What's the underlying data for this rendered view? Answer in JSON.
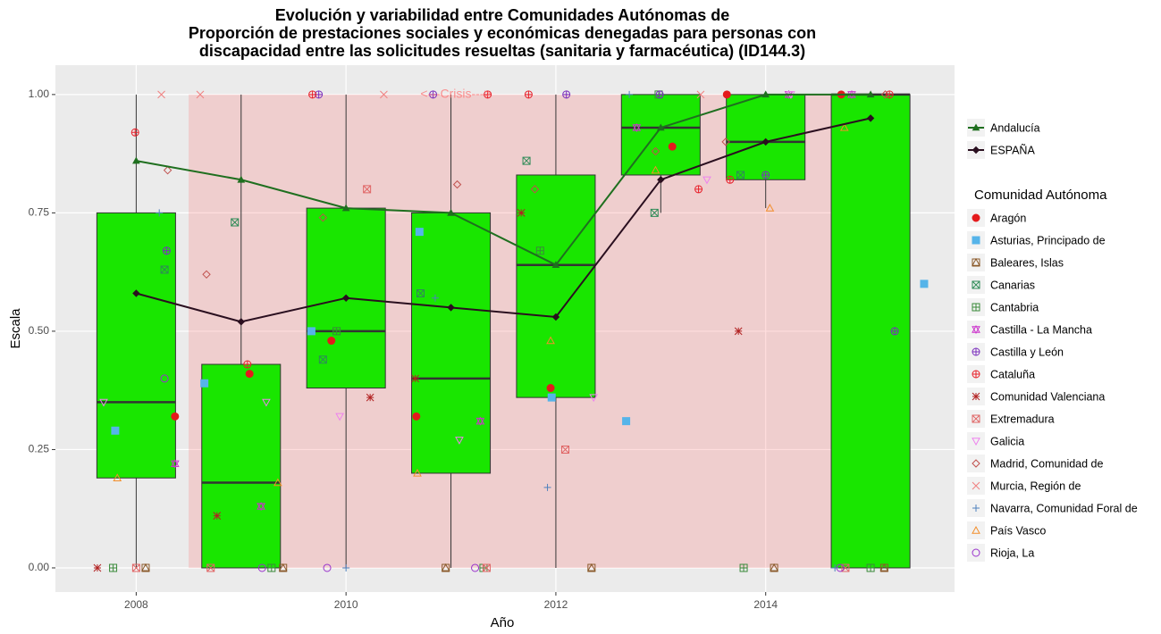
{
  "chart_data": {
    "type": "box",
    "title": [
      "Evolución y variabilidad entre Comunidades Autónomas de",
      "Proporción de prestaciones sociales y económicas denegadas para personas con",
      "discapacidad entre las solicitudes resueltas (sanitaria y farmacéutica) (ID144.3)"
    ],
    "x_label": "Año",
    "y_label": "Escala",
    "xlim": [
      2007.23,
      2015.8
    ],
    "ylim": [
      -0.051,
      1.062
    ],
    "xticks": [
      2008,
      2010,
      2012,
      2014
    ],
    "yticks": [
      {
        "value": 0,
        "label": "0.00"
      },
      {
        "value": 0.25,
        "label": "0.25"
      },
      {
        "value": 0.5,
        "label": "0.50"
      },
      {
        "value": 0.75,
        "label": "0.75"
      },
      {
        "value": 1,
        "label": "1.00"
      }
    ],
    "grid": true,
    "crisis": {
      "label": "<---Crisis--->",
      "xlim": [
        2008.5,
        2015
      ],
      "ylim": [
        0,
        1
      ],
      "color": "#ff6b6b"
    },
    "box_color": "#19e600",
    "boxes": [
      {
        "x": 2008,
        "low": 0,
        "q1": 0.19,
        "median": 0.35,
        "q3": 0.75,
        "high": 1
      },
      {
        "x": 2009,
        "low": 0,
        "q1": 0,
        "median": 0.18,
        "q3": 0.43,
        "high": 1
      },
      {
        "x": 2010,
        "low": 0,
        "q1": 0.38,
        "median": 0.5,
        "q3": 0.76,
        "high": 1
      },
      {
        "x": 2011,
        "low": 0,
        "q1": 0.2,
        "median": 0.4,
        "q3": 0.75,
        "high": 1
      },
      {
        "x": 2012,
        "low": 0,
        "q1": 0.36,
        "median": 0.64,
        "q3": 0.83,
        "high": 1
      },
      {
        "x": 2013,
        "low": 0.75,
        "q1": 0.83,
        "median": 0.93,
        "q3": 1,
        "high": 1
      },
      {
        "x": 2014,
        "low": 0.76,
        "q1": 0.82,
        "median": 0.9,
        "q3": 1,
        "high": 1
      },
      {
        "x": 2015,
        "low": 0,
        "q1": 0,
        "median": 1,
        "q3": 1,
        "high": 1
      }
    ],
    "lines": [
      {
        "name": "Andalucía",
        "color": "#1f6f1f",
        "shape": "triangle",
        "x": [
          2008,
          2009,
          2010,
          2011,
          2012,
          2013,
          2014,
          2015
        ],
        "values": [
          0.86,
          0.82,
          0.76,
          0.75,
          0.64,
          0.93,
          1,
          1
        ]
      },
      {
        "name": "ESPAÑA",
        "color": "#2a0f1f",
        "shape": "diamond",
        "x": [
          2008,
          2009,
          2010,
          2011,
          2012,
          2013,
          2014,
          2015
        ],
        "values": [
          0.58,
          0.52,
          0.57,
          0.55,
          0.53,
          0.82,
          0.9,
          0.95
        ]
      }
    ],
    "legend_title": "Comunidad Autónoma",
    "series": [
      {
        "name": "Aragón",
        "color": "#e41a1c",
        "shape": "dot",
        "x": [
          2008.37,
          2009.08,
          2009.86,
          2010.67,
          2011.95,
          2013.11,
          2013.63,
          2014.72
        ],
        "values": [
          0.32,
          0.41,
          0.48,
          0.32,
          0.38,
          0.89,
          1,
          1
        ]
      },
      {
        "name": "Asturias, Principado de",
        "color": "#56b4e9",
        "shape": "square",
        "x": [
          2007.8,
          2008.65,
          2009.67,
          2010.7,
          2011.96,
          2012.67,
          2015.51
        ],
        "values": [
          0.29,
          0.39,
          0.5,
          0.71,
          0.36,
          0.31,
          0.6
        ]
      },
      {
        "name": "Baleares, Islas",
        "color": "#8b5a2b",
        "shape": "square-tri",
        "x": [
          2008.09,
          2009.4,
          2010.95,
          2012.34,
          2014.08,
          2015.13
        ],
        "values": [
          0,
          0,
          0,
          0,
          0,
          0
        ]
      },
      {
        "name": "Canarias",
        "color": "#2e8b57",
        "shape": "square-x",
        "x": [
          2008.27,
          2008.94,
          2009.78,
          2010.71,
          2011.72,
          2012.94,
          2013.76
        ],
        "values": [
          0.63,
          0.73,
          0.44,
          0.58,
          0.86,
          0.75,
          0.83
        ]
      },
      {
        "name": "Cantabria",
        "color": "#3a8a3a",
        "shape": "square-plus",
        "x": [
          2007.78,
          2009.29,
          2009.91,
          2011.31,
          2011.85,
          2012.98,
          2013.79,
          2015
        ],
        "values": [
          0,
          0,
          0.5,
          0,
          0.67,
          1,
          0,
          0
        ]
      },
      {
        "name": "Castilla - La Mancha",
        "color": "#cc33cc",
        "shape": "star-tri",
        "x": [
          2008.37,
          2009.19,
          2011.28,
          2012.77,
          2014.22,
          2014.82
        ],
        "values": [
          0.22,
          0.13,
          0.31,
          0.93,
          1,
          1
        ]
      },
      {
        "name": "Castilla y León",
        "color": "#7b2fbe",
        "shape": "circle-plus",
        "x": [
          2008.29,
          2009.74,
          2010.83,
          2012.1,
          2012.99,
          2014,
          2015.23
        ],
        "values": [
          0.67,
          1,
          1,
          1,
          1,
          0.83,
          0.5
        ]
      },
      {
        "name": "Cataluña",
        "color": "#e8202a",
        "shape": "circle-plus",
        "x": [
          2007.99,
          2009.06,
          2009.68,
          2011.35,
          2011.74,
          2013.36,
          2013.66,
          2015.18
        ],
        "values": [
          0.92,
          0.43,
          1,
          1,
          1,
          0.8,
          0.82,
          1
        ]
      },
      {
        "name": "Comunidad Valenciana",
        "color": "#b22222",
        "shape": "asterisk",
        "x": [
          2007.63,
          2008.77,
          2010.23,
          2010.66,
          2011.67,
          2013.74
        ],
        "values": [
          0,
          0.11,
          0.36,
          0.4,
          0.75,
          0.5
        ]
      },
      {
        "name": "Extremadura",
        "color": "#e06666",
        "shape": "square-x",
        "x": [
          2008,
          2008.71,
          2010.2,
          2011.34,
          2012.09,
          2014.76
        ],
        "values": [
          0,
          0,
          0.8,
          0,
          0.25,
          0
        ]
      },
      {
        "name": "Galicia",
        "color": "#ee82ee",
        "shape": "tri-down",
        "x": [
          2007.69,
          2009.24,
          2009.94,
          2011.08,
          2012.36,
          2013.44,
          2014.24
        ],
        "values": [
          0.35,
          0.35,
          0.32,
          0.27,
          0.36,
          0.82,
          1
        ]
      },
      {
        "name": "Madrid, Comunidad de",
        "color": "#c0504d",
        "shape": "diamond-open",
        "x": [
          2008.3,
          2008.67,
          2009.78,
          2011.06,
          2011.8,
          2012.95,
          2013.62,
          2015.14
        ],
        "values": [
          0.84,
          0.62,
          0.74,
          0.81,
          0.8,
          0.88,
          0.9,
          1
        ]
      },
      {
        "name": "Murcia, Región de",
        "color": "#f08080",
        "shape": "x",
        "x": [
          2008.24,
          2008.61,
          2010.36,
          2013.38
        ],
        "values": [
          1,
          1,
          1,
          1
        ]
      },
      {
        "name": "Navarra, Comunidad Foral de",
        "color": "#4f81bd",
        "shape": "plus",
        "x": [
          2008.22,
          2010,
          2010.85,
          2011.92,
          2012.7,
          2014.66
        ],
        "values": [
          0.75,
          0,
          0.57,
          0.17,
          1,
          0
        ]
      },
      {
        "name": "País Vasco",
        "color": "#f28e2b",
        "shape": "tri-up",
        "x": [
          2007.82,
          2009.35,
          2010.68,
          2011.95,
          2012.95,
          2014.04,
          2014.75
        ],
        "values": [
          0.19,
          0.18,
          0.2,
          0.48,
          0.84,
          0.76,
          0.93
        ]
      },
      {
        "name": "Rioja, La",
        "color": "#9932cc",
        "shape": "circle",
        "x": [
          2008.27,
          2009.2,
          2009.82,
          2011.23,
          2014.71
        ],
        "values": [
          0.4,
          0,
          0,
          0,
          0
        ]
      }
    ]
  }
}
